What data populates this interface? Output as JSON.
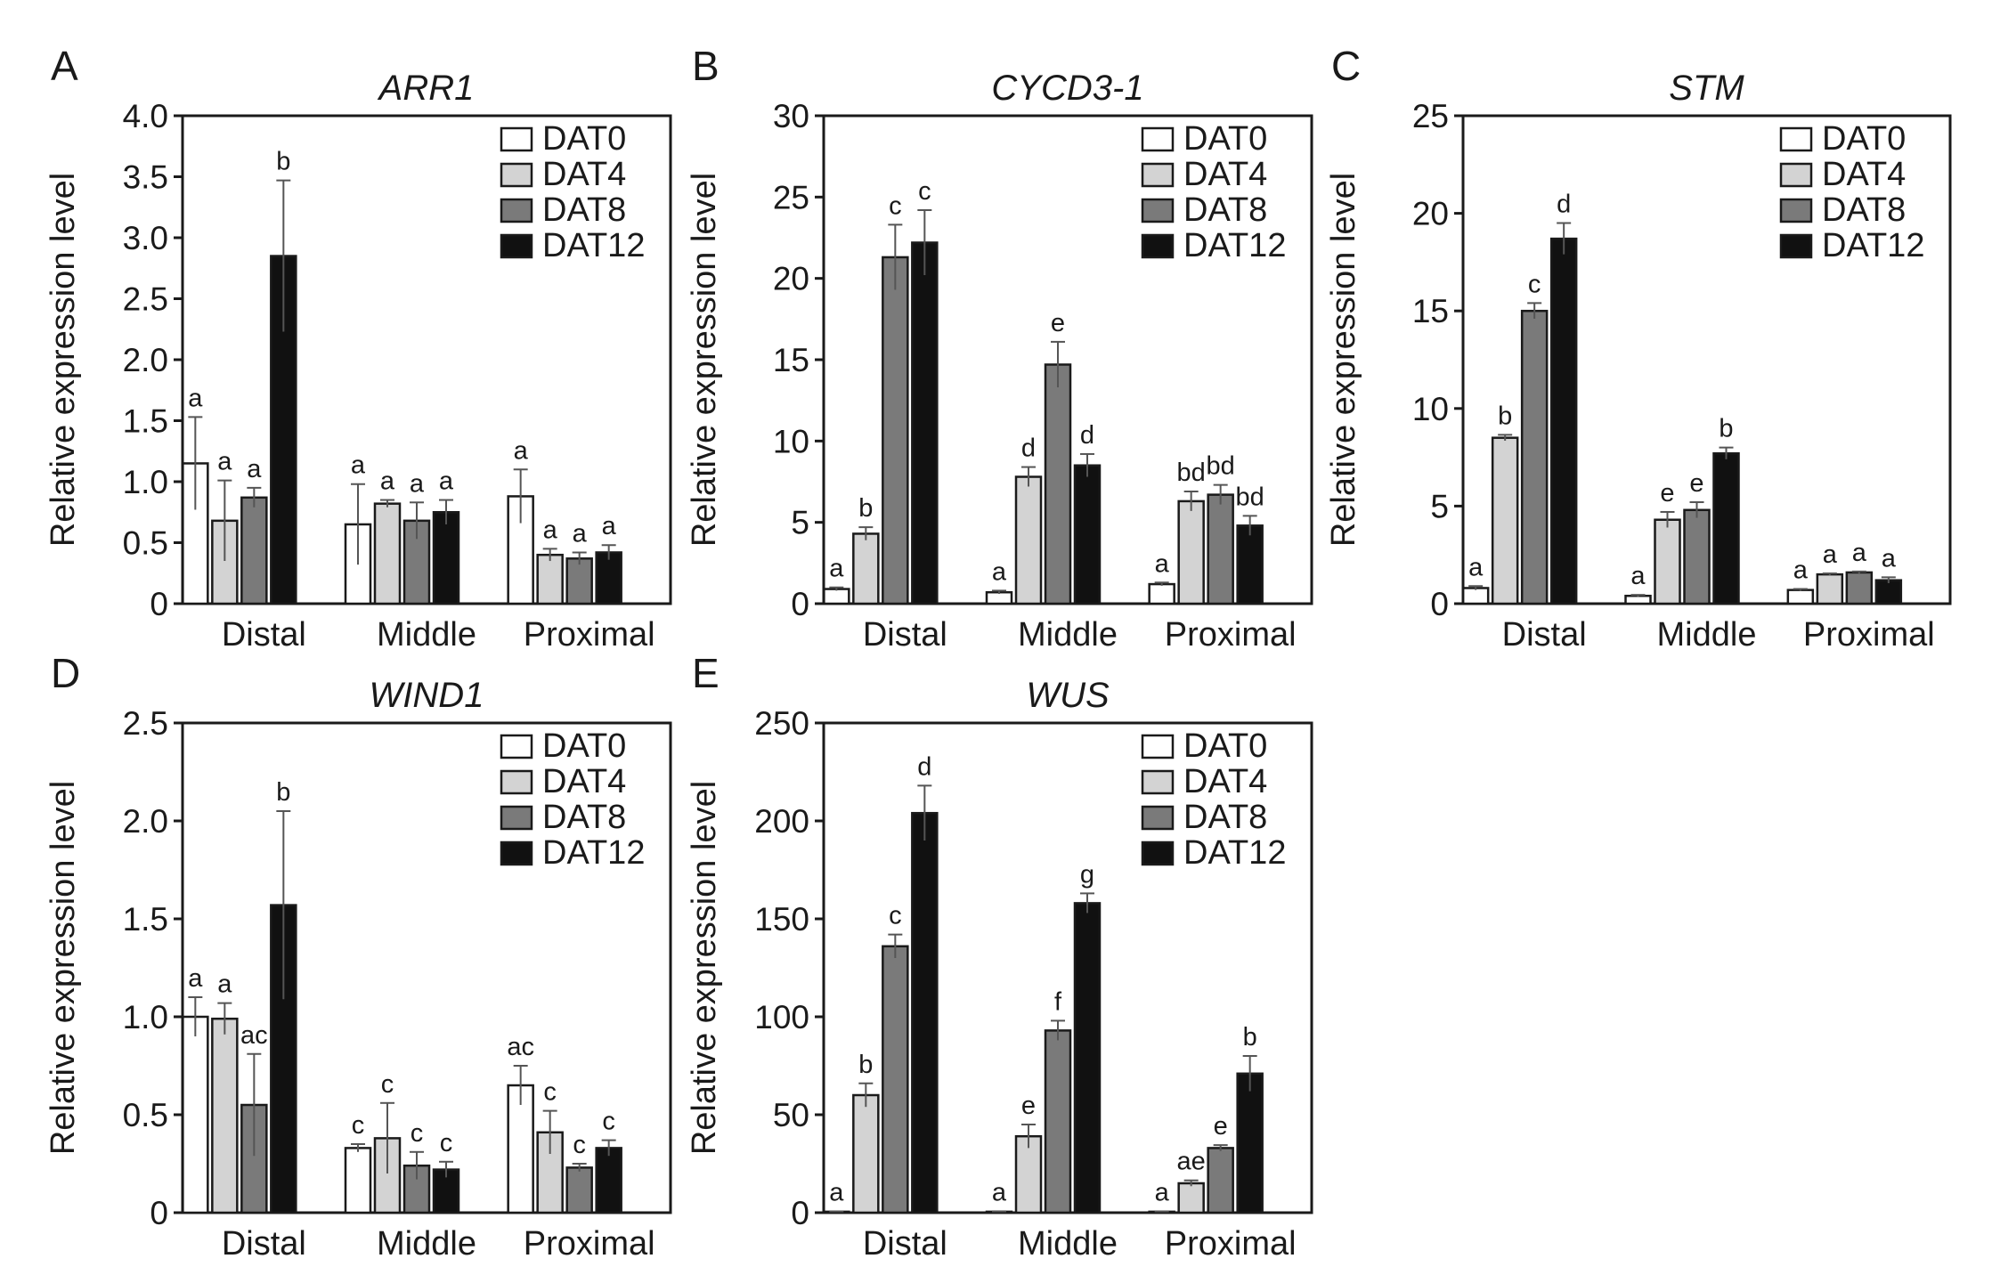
{
  "figure": {
    "y_title": "Relative expression level"
  },
  "series_names": [
    "DAT0",
    "DAT4",
    "DAT8",
    "DAT12"
  ],
  "colors": {
    "DAT0": "#ffffff",
    "DAT4": "#d3d3d3",
    "DAT8": "#7a7a7a",
    "DAT12": "#111111",
    "axis": "#1a1a1a"
  },
  "chart_data": [
    {
      "panel": "A",
      "title": "ARR1",
      "type": "bar",
      "categories": [
        "Distal",
        "Middle",
        "Proximal"
      ],
      "ylabel": "Relative expression level",
      "ylim": [
        0,
        4.0
      ],
      "yticks": [
        "0",
        "0.5",
        "1.0",
        "1.5",
        "2.0",
        "2.5",
        "3.0",
        "3.5",
        "4.0"
      ],
      "legend_position": "top-right",
      "series": [
        {
          "name": "DAT0",
          "values": [
            1.15,
            0.65,
            0.88
          ],
          "errors": [
            0.38,
            0.33,
            0.22
          ],
          "labels": [
            "a",
            "a",
            "a"
          ]
        },
        {
          "name": "DAT4",
          "values": [
            0.68,
            0.82,
            0.4
          ],
          "errors": [
            0.33,
            0.03,
            0.05
          ],
          "labels": [
            "a",
            "a",
            "a"
          ]
        },
        {
          "name": "DAT8",
          "values": [
            0.87,
            0.68,
            0.37
          ],
          "errors": [
            0.08,
            0.15,
            0.05
          ],
          "labels": [
            "a",
            "a",
            "a"
          ]
        },
        {
          "name": "DAT12",
          "values": [
            2.85,
            0.75,
            0.42
          ],
          "errors": [
            0.62,
            0.1,
            0.06
          ],
          "labels": [
            "b",
            "a",
            "a"
          ]
        }
      ]
    },
    {
      "panel": "B",
      "title": "CYCD3-1",
      "type": "bar",
      "categories": [
        "Distal",
        "Middle",
        "Proximal"
      ],
      "ylabel": "Relative expression level",
      "ylim": [
        0,
        30
      ],
      "yticks": [
        "0",
        "5",
        "10",
        "15",
        "20",
        "25",
        "30"
      ],
      "legend_position": "top-right",
      "series": [
        {
          "name": "DAT0",
          "values": [
            0.9,
            0.7,
            1.2
          ],
          "errors": [
            0.1,
            0.1,
            0.1
          ],
          "labels": [
            "a",
            "a",
            "a"
          ]
        },
        {
          "name": "DAT4",
          "values": [
            4.3,
            7.8,
            6.3
          ],
          "errors": [
            0.4,
            0.6,
            0.6
          ],
          "labels": [
            "b",
            "d",
            "bd"
          ]
        },
        {
          "name": "DAT8",
          "values": [
            21.3,
            14.7,
            6.7
          ],
          "errors": [
            2.0,
            1.4,
            0.6
          ],
          "labels": [
            "c",
            "e",
            "bd"
          ]
        },
        {
          "name": "DAT12",
          "values": [
            22.2,
            8.5,
            4.8
          ],
          "errors": [
            2.0,
            0.7,
            0.6
          ],
          "labels": [
            "c",
            "d",
            "bd"
          ]
        }
      ]
    },
    {
      "panel": "C",
      "title": "STM",
      "type": "bar",
      "categories": [
        "Distal",
        "Middle",
        "Proximal"
      ],
      "ylabel": "Relative expression level",
      "ylim": [
        0,
        25
      ],
      "yticks": [
        "0",
        "5",
        "10",
        "15",
        "20",
        "25"
      ],
      "legend_position": "top-right",
      "series": [
        {
          "name": "DAT0",
          "values": [
            0.8,
            0.4,
            0.7
          ],
          "errors": [
            0.1,
            0.05,
            0.05
          ],
          "labels": [
            "a",
            "a",
            "a"
          ]
        },
        {
          "name": "DAT4",
          "values": [
            8.5,
            4.3,
            1.5
          ],
          "errors": [
            0.15,
            0.4,
            0.05
          ],
          "labels": [
            "b",
            "e",
            "a"
          ]
        },
        {
          "name": "DAT8",
          "values": [
            15.0,
            4.8,
            1.6
          ],
          "errors": [
            0.4,
            0.4,
            0.05
          ],
          "labels": [
            "c",
            "e",
            "a"
          ]
        },
        {
          "name": "DAT12",
          "values": [
            18.7,
            7.7,
            1.2
          ],
          "errors": [
            0.8,
            0.3,
            0.15
          ],
          "labels": [
            "d",
            "b",
            "a"
          ]
        }
      ]
    },
    {
      "panel": "D",
      "title": "WIND1",
      "type": "bar",
      "categories": [
        "Distal",
        "Middle",
        "Proximal"
      ],
      "ylabel": "Relative expression level",
      "ylim": [
        0,
        2.5
      ],
      "yticks": [
        "0",
        "0.5",
        "1.0",
        "1.5",
        "2.0",
        "2.5"
      ],
      "legend_position": "top-right",
      "series": [
        {
          "name": "DAT0",
          "values": [
            1.0,
            0.33,
            0.65
          ],
          "errors": [
            0.1,
            0.02,
            0.1
          ],
          "labels": [
            "a",
            "c",
            "ac"
          ]
        },
        {
          "name": "DAT4",
          "values": [
            0.99,
            0.38,
            0.41
          ],
          "errors": [
            0.08,
            0.18,
            0.11
          ],
          "labels": [
            "a",
            "c",
            "c"
          ]
        },
        {
          "name": "DAT8",
          "values": [
            0.55,
            0.24,
            0.23
          ],
          "errors": [
            0.26,
            0.07,
            0.02
          ],
          "labels": [
            "ac",
            "c",
            "c"
          ]
        },
        {
          "name": "DAT12",
          "values": [
            1.57,
            0.22,
            0.33
          ],
          "errors": [
            0.48,
            0.04,
            0.04
          ],
          "labels": [
            "b",
            "c",
            "c"
          ]
        }
      ]
    },
    {
      "panel": "E",
      "title": "WUS",
      "type": "bar",
      "categories": [
        "Distal",
        "Middle",
        "Proximal"
      ],
      "ylabel": "Relative expression level",
      "ylim": [
        0,
        250
      ],
      "yticks": [
        "0",
        "50",
        "100",
        "150",
        "200",
        "250"
      ],
      "legend_position": "top-right",
      "series": [
        {
          "name": "DAT0",
          "values": [
            0.5,
            0.5,
            0.5
          ],
          "errors": [
            0.2,
            0.2,
            0.2
          ],
          "labels": [
            "a",
            "a",
            "a"
          ]
        },
        {
          "name": "DAT4",
          "values": [
            60,
            39,
            15
          ],
          "errors": [
            6,
            6,
            1.5
          ],
          "labels": [
            "b",
            "e",
            "ae"
          ]
        },
        {
          "name": "DAT8",
          "values": [
            136,
            93,
            33
          ],
          "errors": [
            6,
            5,
            1.5
          ],
          "labels": [
            "c",
            "f",
            "e"
          ]
        },
        {
          "name": "DAT12",
          "values": [
            204,
            158,
            71
          ],
          "errors": [
            14,
            5,
            9
          ],
          "labels": [
            "d",
            "g",
            "b"
          ]
        }
      ]
    }
  ]
}
